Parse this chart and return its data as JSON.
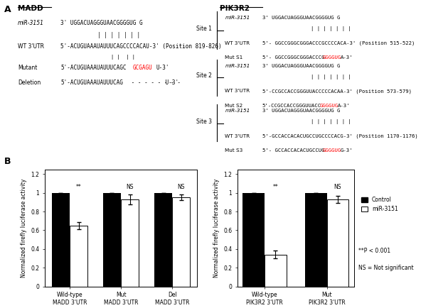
{
  "panel_A": {
    "MADD": {
      "title": "MADD",
      "mir_seq": "3' UGGACUAGGGUAACGGGGUG G",
      "wt_seq": "5'-ACUGUAAAUAUUUCAGCCCCACAU-3' (Position 819-826)",
      "mut_seq_black": "5'-ACUGUAAAUAUUUCAGC",
      "mut_seq_red": "GCGAGU",
      "mut_seq_black2": "U-3'",
      "del_seq_black": "5'-ACUGUAAAUAUUUCAG",
      "del_seq_dots": " - - - - - - - -",
      "del_seq_end": " U-3'"
    },
    "PIK3R2": {
      "sites": [
        {
          "label": "Site 1",
          "wt_seq": "5'- GGCCGGGCGGGACCCGCCCCACA-3' (Position 515-522)",
          "mut_label": "Mut S1",
          "mut_seq_black": "5'- GGCCGGGCGGGACCCG",
          "mut_seq_red": "GGGGUG",
          "mut_seq_black2": "A-3'"
        },
        {
          "label": "Site 2",
          "wt_seq": "5'-CCGCCACCGGGUUACCCCCACAA-3' (Position 573-579)",
          "mut_label": "Mut S2",
          "mut_seq_black": "5'-CCGCCACCGGGUUACC",
          "mut_seq_red": "GGGGUG",
          "mut_seq_black2": "A-3'"
        },
        {
          "label": "Site 3",
          "wt_seq": "5'-GCCACCACACUGCCUGCCCCACG-3' (Position 1170-1176)",
          "mut_label": "Mut S3",
          "mut_seq_black": "5'- GCCACCACACUGCCUG",
          "mut_seq_red": "GGGGUG",
          "mut_seq_black2": "G-3'"
        }
      ]
    }
  },
  "panel_B": {
    "MADD": {
      "categories": [
        "Wild-type\nMADD 3'UTR",
        "Mut\nMADD 3'UTR",
        "Del\nMADD 3'UTR"
      ],
      "control": [
        1.0,
        1.0,
        1.0
      ],
      "mir3151": [
        0.65,
        0.93,
        0.95
      ],
      "mir3151_err": [
        0.04,
        0.05,
        0.03
      ],
      "significance": [
        "**",
        "NS",
        "NS"
      ],
      "ylabel": "Normalized firefly luciferase activity"
    },
    "PIK3R2": {
      "categories": [
        "Wild-type\nPIK3R2 3'UTR",
        "Mut\nPIK3R2 3'UTR"
      ],
      "control": [
        1.0,
        1.0
      ],
      "mir3151": [
        0.34,
        0.93
      ],
      "mir3151_err": [
        0.04,
        0.04
      ],
      "significance": [
        "**",
        "NS"
      ],
      "ylabel": "Normalized firefly luciferase activity"
    },
    "legend": {
      "control_label": "Control",
      "mir_label": "miR-3151",
      "note1": "**P < 0.001",
      "note2": "NS = Not significant"
    }
  }
}
